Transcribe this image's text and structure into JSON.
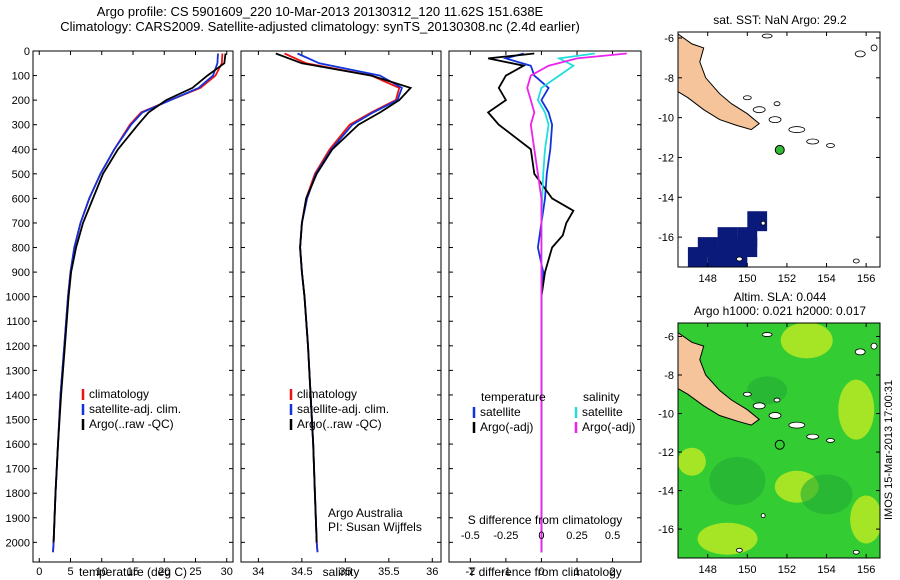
{
  "header": {
    "line1": "Argo profile: CS 5901609_220 10-Mar-2013 20130312_120 11.62S 151.638E",
    "line2": "Climatology: CARS2009. Satellite-adjusted climatology: synTS_20130308.nc (2.4d earlier)"
  },
  "credit": {
    "line1": "Argo Australia",
    "line2": "PI: Susan Wijffels"
  },
  "stamp": "IMOS 15-Mar-2013 17:00:31",
  "colors": {
    "red": "#ee1111",
    "blue": "#1133dd",
    "black": "#000000",
    "cyan": "#22dddd",
    "magenta": "#ee22ee",
    "land": "#f5c49a",
    "sst_cell": "#0a1a7a",
    "sla_green": "#33cc33",
    "sla_yellow": "#ccee22",
    "dot": "#33bb33"
  },
  "chart_data": [
    {
      "id": "temperature",
      "type": "line",
      "xlabel": "temperature (deg C)",
      "xlim": [
        -1,
        31
      ],
      "ylim": [
        2080,
        0
      ],
      "xticks": [
        0,
        5,
        10,
        15,
        20,
        25,
        30
      ],
      "yticks": [
        0,
        100,
        200,
        300,
        400,
        500,
        600,
        700,
        800,
        900,
        1000,
        1100,
        1200,
        1300,
        1400,
        1500,
        1600,
        1700,
        1800,
        1900,
        2000
      ],
      "legend": [
        "climatology",
        "satellite-adj. clim.",
        "Argo(..raw -QC)"
      ],
      "series": [
        {
          "name": "climatology",
          "color": "red",
          "depth": [
            10,
            50,
            100,
            150,
            200,
            250,
            300,
            400,
            500,
            600,
            700,
            800,
            900,
            1000,
            1200,
            1400,
            1600,
            1800,
            2000,
            2040
          ],
          "values": [
            29.3,
            29.2,
            28.2,
            25.8,
            21.0,
            16.3,
            14.5,
            12.0,
            9.8,
            8.0,
            6.6,
            5.6,
            5.0,
            4.6,
            4.0,
            3.4,
            3.0,
            2.6,
            2.3,
            2.2
          ]
        },
        {
          "name": "satellite-adj. clim.",
          "color": "blue",
          "depth": [
            10,
            50,
            100,
            150,
            200,
            250,
            300,
            400,
            500,
            600,
            700,
            800,
            900,
            1000,
            1200,
            1400,
            1600,
            1800,
            2000,
            2040
          ],
          "values": [
            28.6,
            28.5,
            27.8,
            25.5,
            21.0,
            16.5,
            14.7,
            12.0,
            9.8,
            8.0,
            6.6,
            5.6,
            5.0,
            4.6,
            4.0,
            3.4,
            3.0,
            2.6,
            2.3,
            2.2
          ]
        },
        {
          "name": "Argo(..raw -QC)",
          "color": "black",
          "depth": [
            10,
            50,
            100,
            150,
            200,
            250,
            300,
            400,
            500,
            600,
            700,
            800,
            900,
            1000,
            1200,
            1400,
            1600,
            1800,
            2000
          ],
          "values": [
            29.8,
            29.6,
            26.9,
            24.5,
            20.3,
            17.5,
            15.8,
            12.6,
            10.2,
            8.6,
            7.0,
            5.9,
            5.1,
            4.7,
            4.1,
            3.5,
            3.0,
            2.6,
            2.3
          ]
        }
      ]
    },
    {
      "id": "salinity",
      "type": "line",
      "xlabel": "salinity",
      "xlim": [
        33.8,
        36.1
      ],
      "ylim": [
        2080,
        0
      ],
      "xticks": [
        34,
        34.5,
        35,
        35.5,
        36
      ],
      "legend": [
        "climatology",
        "satellite-adj. clim.",
        "Argo(..raw -QC)"
      ],
      "series": [
        {
          "name": "climatology",
          "color": "red",
          "depth": [
            10,
            50,
            100,
            150,
            200,
            250,
            300,
            400,
            500,
            600,
            700,
            800,
            900,
            1000,
            1200,
            1400,
            1600,
            1800,
            2000,
            2040
          ],
          "values": [
            34.3,
            34.55,
            35.3,
            35.62,
            35.58,
            35.3,
            35.05,
            34.82,
            34.65,
            34.55,
            34.5,
            34.48,
            34.5,
            34.53,
            34.57,
            34.6,
            34.63,
            34.65,
            34.67,
            34.68
          ]
        },
        {
          "name": "satellite-adj. clim.",
          "color": "blue",
          "depth": [
            10,
            50,
            100,
            150,
            200,
            250,
            300,
            400,
            500,
            600,
            700,
            800,
            900,
            1000,
            1200,
            1400,
            1600,
            1800,
            2000,
            2040
          ],
          "values": [
            34.45,
            34.7,
            35.4,
            35.65,
            35.6,
            35.32,
            35.08,
            34.84,
            34.66,
            34.56,
            34.5,
            34.48,
            34.5,
            34.53,
            34.57,
            34.6,
            34.63,
            34.65,
            34.67,
            34.68
          ]
        },
        {
          "name": "Argo(..raw -QC)",
          "color": "black",
          "depth": [
            10,
            50,
            100,
            150,
            200,
            250,
            300,
            400,
            500,
            600,
            700,
            800,
            900,
            1000,
            1200,
            1400,
            1600,
            1800,
            2000
          ],
          "values": [
            34.2,
            34.5,
            35.3,
            35.75,
            35.62,
            35.4,
            35.15,
            34.85,
            34.67,
            34.55,
            34.5,
            34.48,
            34.5,
            34.53,
            34.57,
            34.6,
            34.63,
            34.65,
            34.67
          ]
        }
      ]
    },
    {
      "id": "difference",
      "type": "line",
      "xlabel": "T difference from climatology",
      "toplabel": "S difference from climatology",
      "xlim": [
        -2.6,
        2.8
      ],
      "ylim": [
        2080,
        0
      ],
      "xticks": [
        -2,
        -1,
        0,
        1,
        2
      ],
      "xticklabels_top": [
        "-0.5",
        "-0.25",
        "0",
        "0.25",
        "0.5"
      ],
      "xticks_top": [
        -2,
        -1,
        0,
        1,
        2
      ],
      "legend_left": {
        "title": "temperature",
        "items": [
          "satellite",
          "Argo(-adj)"
        ]
      },
      "legend_right": {
        "title": "salinity",
        "items": [
          "satellite",
          "Argo(-adj)"
        ]
      },
      "series": [
        {
          "name": "T satellite",
          "color": "blue",
          "depth": [
            10,
            30,
            60,
            100,
            150,
            200,
            250,
            300,
            400,
            500,
            600,
            700,
            800,
            900,
            1000,
            1200,
            1500,
            2040
          ],
          "values": [
            -0.5,
            -1.0,
            -0.3,
            -0.2,
            0.2,
            0.0,
            0.2,
            0.3,
            0.25,
            0.15,
            0.1,
            0.0,
            -0.1,
            0.05,
            0.0,
            0.0,
            0.0,
            0.0
          ]
        },
        {
          "name": "T Argo(-adj)",
          "color": "black",
          "depth": [
            10,
            30,
            60,
            100,
            150,
            200,
            250,
            300,
            400,
            500,
            600,
            650,
            700,
            750,
            800,
            900,
            1000,
            1200,
            1500,
            2040
          ],
          "values": [
            -0.2,
            -1.5,
            -0.5,
            -1.0,
            -1.2,
            -1.0,
            -1.5,
            -1.2,
            -0.3,
            -0.2,
            0.3,
            0.9,
            0.7,
            0.6,
            0.3,
            0.1,
            0.0,
            0.0,
            0.0,
            0.0
          ]
        },
        {
          "name": "S satellite",
          "color": "cyan",
          "depth": [
            10,
            30,
            60,
            100,
            150,
            200,
            250,
            300,
            400,
            500,
            600,
            700,
            800,
            900,
            1000,
            1200,
            1500,
            2040
          ],
          "values": [
            1.5,
            0.5,
            0.9,
            0.5,
            0.0,
            -0.1,
            0.1,
            0.2,
            0.1,
            0.05,
            0.02,
            0.0,
            0.0,
            0.0,
            0.0,
            0.0,
            0.0,
            0.0
          ]
        },
        {
          "name": "S Argo(-adj)",
          "color": "magenta",
          "depth": [
            10,
            30,
            60,
            100,
            150,
            200,
            250,
            300,
            400,
            500,
            600,
            700,
            800,
            900,
            1000,
            1200,
            1500,
            2040
          ],
          "values": [
            2.4,
            1.0,
            0.2,
            -0.3,
            -0.4,
            -0.3,
            -0.2,
            -0.3,
            -0.2,
            -0.1,
            0.0,
            0.0,
            0.0,
            0.0,
            0.0,
            0.0,
            0.0,
            0.0
          ]
        }
      ]
    },
    {
      "id": "sst_map",
      "type": "heatmap",
      "title": "sat. SST: NaN Argo: 29.2",
      "xlim": [
        146.5,
        156.7
      ],
      "ylim": [
        -17.5,
        -5.7
      ],
      "xticks": [
        148,
        150,
        152,
        154,
        156
      ],
      "yticks": [
        -6,
        -8,
        -10,
        -12,
        -14,
        -16
      ],
      "argo_position": {
        "lon": 151.638,
        "lat": -11.62
      },
      "cells": [
        [
          148,
          -16.5
        ],
        [
          149,
          -16.5
        ],
        [
          150,
          -16.5
        ],
        [
          147.5,
          -17
        ],
        [
          148.5,
          -17
        ],
        [
          149.5,
          -17
        ],
        [
          150.5,
          -15.2
        ],
        [
          149,
          -16
        ],
        [
          150,
          -16
        ]
      ]
    },
    {
      "id": "sla_map",
      "type": "heatmap",
      "title_line1": "Altim. SLA: 0.044",
      "title_line2": "Argo h1000: 0.021 h2000: 0.017",
      "xlim": [
        146.5,
        156.7
      ],
      "ylim": [
        -17.5,
        -5.3
      ],
      "xticks": [
        148,
        150,
        152,
        154,
        156
      ],
      "yticks": [
        -6,
        -8,
        -10,
        -12,
        -14,
        -16
      ],
      "argo_position": {
        "lon": 151.638,
        "lat": -11.62
      }
    }
  ]
}
